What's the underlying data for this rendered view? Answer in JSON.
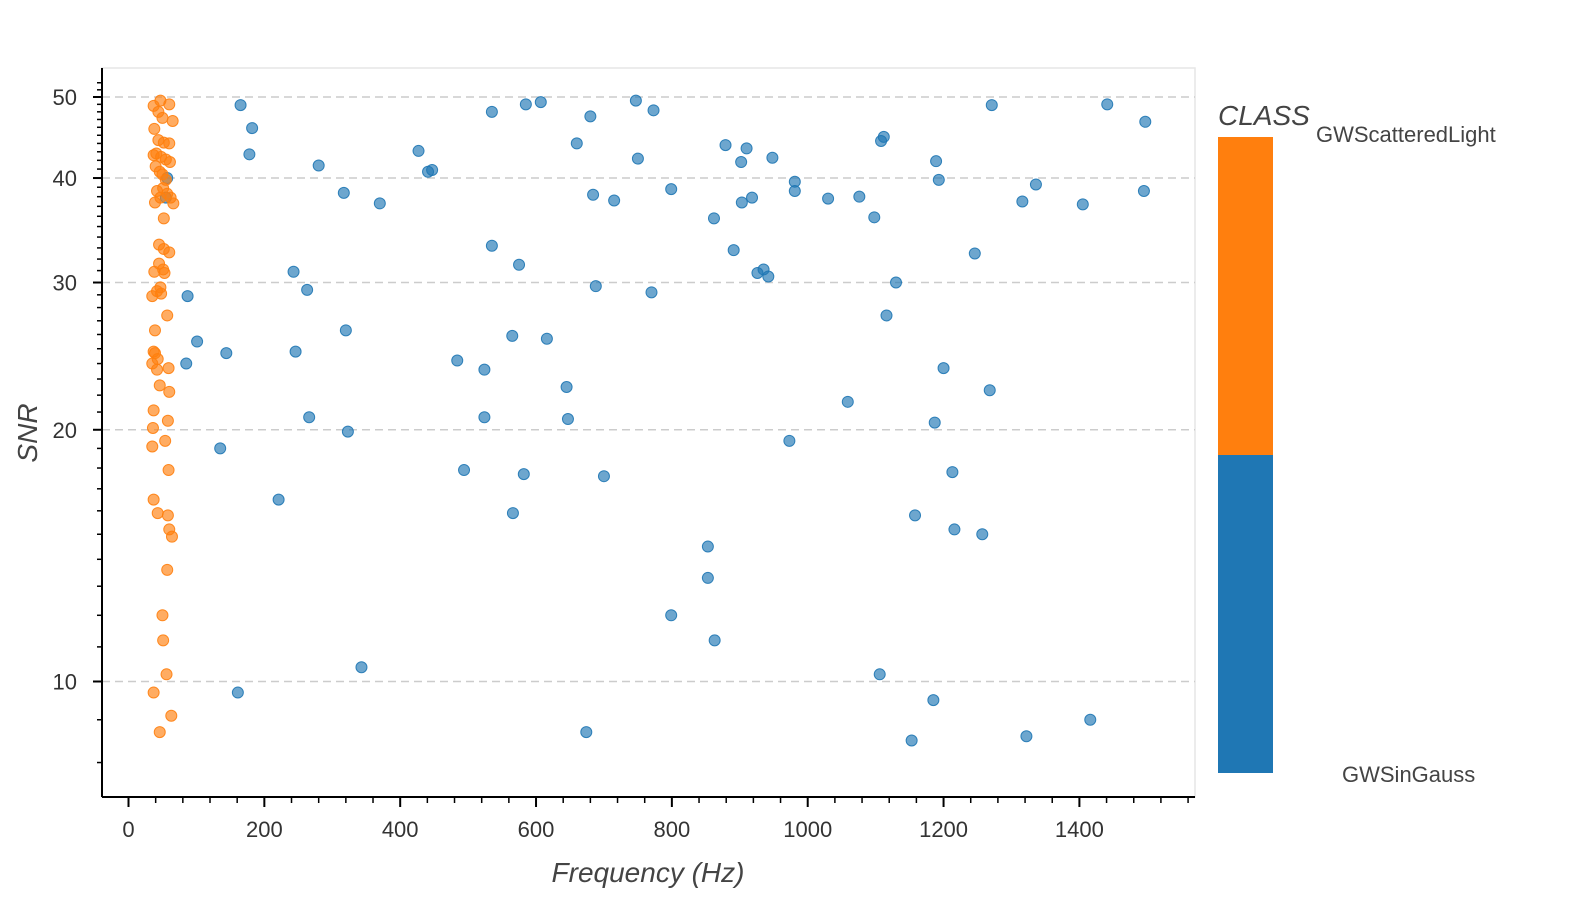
{
  "chart_data": {
    "type": "scatter",
    "xlabel": "Frequency (Hz)",
    "ylabel": "SNR",
    "xlim": [
      -40,
      1560
    ],
    "ylim": [
      7.6,
      53
    ],
    "y_scale": "log",
    "x_ticks": [
      0,
      200,
      400,
      600,
      800,
      1000,
      1200,
      1400
    ],
    "y_ticks": [
      10,
      20,
      30,
      40,
      50
    ],
    "grid": "horizontal-dashed",
    "legend": {
      "title": "CLASS",
      "placement": "right",
      "top_label": "GWScatteredLight",
      "bottom_label": "GWSinGauss"
    },
    "series": [
      {
        "name": "GWSinGauss",
        "color": "#1f77b4",
        "points": [
          [
            165,
            48.9
          ],
          [
            182,
            45.9
          ],
          [
            178,
            42.7
          ],
          [
            57,
            40.0
          ],
          [
            55,
            37.9
          ],
          [
            87,
            28.9
          ],
          [
            101,
            25.5
          ],
          [
            144,
            24.7
          ],
          [
            85,
            24.0
          ],
          [
            135,
            19.0
          ],
          [
            161,
            9.7
          ],
          [
            221,
            16.5
          ],
          [
            243,
            30.9
          ],
          [
            263,
            29.4
          ],
          [
            246,
            24.8
          ],
          [
            266,
            20.7
          ],
          [
            280,
            41.4
          ],
          [
            317,
            38.4
          ],
          [
            320,
            26.3
          ],
          [
            323,
            19.9
          ],
          [
            343,
            10.4
          ],
          [
            370,
            37.3
          ],
          [
            427,
            43.1
          ],
          [
            441,
            40.7
          ],
          [
            447,
            40.9
          ],
          [
            484,
            24.2
          ],
          [
            494,
            17.9
          ],
          [
            524,
            23.6
          ],
          [
            524,
            20.7
          ],
          [
            535,
            48.0
          ],
          [
            535,
            33.2
          ],
          [
            565,
            25.9
          ],
          [
            566,
            15.9
          ],
          [
            575,
            31.5
          ],
          [
            582,
            17.7
          ],
          [
            585,
            49.0
          ],
          [
            607,
            49.3
          ],
          [
            616,
            25.7
          ],
          [
            645,
            22.5
          ],
          [
            647,
            20.6
          ],
          [
            660,
            44.0
          ],
          [
            674,
            8.7
          ],
          [
            680,
            47.4
          ],
          [
            684,
            38.2
          ],
          [
            688,
            29.7
          ],
          [
            700,
            17.6
          ],
          [
            715,
            37.6
          ],
          [
            747,
            49.5
          ],
          [
            750,
            42.2
          ],
          [
            770,
            29.2
          ],
          [
            773,
            48.2
          ],
          [
            799,
            38.8
          ],
          [
            799,
            12.0
          ],
          [
            853,
            14.5
          ],
          [
            853,
            13.3
          ],
          [
            862,
            35.8
          ],
          [
            863,
            11.2
          ],
          [
            879,
            43.8
          ],
          [
            891,
            32.8
          ],
          [
            902,
            41.8
          ],
          [
            903,
            37.4
          ],
          [
            910,
            43.4
          ],
          [
            918,
            37.9
          ],
          [
            926,
            30.8
          ],
          [
            935,
            31.1
          ],
          [
            942,
            30.5
          ],
          [
            948,
            42.3
          ],
          [
            973,
            19.4
          ],
          [
            981,
            39.6
          ],
          [
            981,
            38.6
          ],
          [
            1030,
            37.8
          ],
          [
            1059,
            21.6
          ],
          [
            1076,
            38.0
          ],
          [
            1098,
            35.9
          ],
          [
            1106,
            10.2
          ],
          [
            1108,
            44.3
          ],
          [
            1112,
            44.8
          ],
          [
            1116,
            27.4
          ],
          [
            1130,
            30.0
          ],
          [
            1153,
            8.5
          ],
          [
            1158,
            15.8
          ],
          [
            1185,
            9.5
          ],
          [
            1187,
            20.4
          ],
          [
            1189,
            41.9
          ],
          [
            1193,
            39.8
          ],
          [
            1200,
            23.7
          ],
          [
            1213,
            17.8
          ],
          [
            1216,
            15.2
          ],
          [
            1246,
            32.5
          ],
          [
            1257,
            15.0
          ],
          [
            1268,
            22.3
          ],
          [
            1271,
            48.9
          ],
          [
            1316,
            37.5
          ],
          [
            1322,
            8.6
          ],
          [
            1336,
            39.3
          ],
          [
            1405,
            37.2
          ],
          [
            1416,
            9.0
          ],
          [
            1441,
            49.0
          ],
          [
            1495,
            38.6
          ],
          [
            1497,
            46.7
          ]
        ]
      },
      {
        "name": "GWScatteredLight",
        "color": "#ff7f0e",
        "points": [
          [
            37,
            48.8
          ],
          [
            47,
            49.5
          ],
          [
            60,
            49.0
          ],
          [
            44,
            48.0
          ],
          [
            50,
            47.2
          ],
          [
            65,
            46.8
          ],
          [
            38,
            45.8
          ],
          [
            44,
            44.4
          ],
          [
            52,
            44.1
          ],
          [
            60,
            44.0
          ],
          [
            41,
            42.8
          ],
          [
            48,
            42.4
          ],
          [
            37,
            42.6
          ],
          [
            55,
            42.1
          ],
          [
            61,
            41.8
          ],
          [
            40,
            41.3
          ],
          [
            46,
            40.7
          ],
          [
            50,
            40.4
          ],
          [
            55,
            39.8
          ],
          [
            42,
            38.6
          ],
          [
            51,
            38.9
          ],
          [
            57,
            38.3
          ],
          [
            47,
            37.9
          ],
          [
            62,
            37.9
          ],
          [
            39,
            37.4
          ],
          [
            66,
            37.3
          ],
          [
            52,
            35.8
          ],
          [
            45,
            33.3
          ],
          [
            52,
            32.9
          ],
          [
            60,
            32.6
          ],
          [
            45,
            31.6
          ],
          [
            51,
            31.1
          ],
          [
            53,
            30.8
          ],
          [
            38,
            30.9
          ],
          [
            47,
            29.6
          ],
          [
            42,
            29.3
          ],
          [
            48,
            29.1
          ],
          [
            35,
            28.9
          ],
          [
            57,
            27.4
          ],
          [
            39,
            26.3
          ],
          [
            37,
            24.8
          ],
          [
            39,
            24.7
          ],
          [
            43,
            24.3
          ],
          [
            35,
            24.0
          ],
          [
            42,
            23.6
          ],
          [
            59,
            23.7
          ],
          [
            46,
            22.6
          ],
          [
            60,
            22.2
          ],
          [
            37,
            21.1
          ],
          [
            58,
            20.5
          ],
          [
            36,
            20.1
          ],
          [
            54,
            19.4
          ],
          [
            35,
            19.1
          ],
          [
            59,
            17.9
          ],
          [
            37,
            16.5
          ],
          [
            43,
            15.9
          ],
          [
            58,
            15.8
          ],
          [
            60,
            15.2
          ],
          [
            64,
            14.9
          ],
          [
            57,
            13.6
          ],
          [
            50,
            12.0
          ],
          [
            51,
            11.2
          ],
          [
            56,
            10.2
          ],
          [
            37,
            9.7
          ],
          [
            63,
            9.1
          ],
          [
            46,
            8.7
          ]
        ]
      }
    ]
  }
}
